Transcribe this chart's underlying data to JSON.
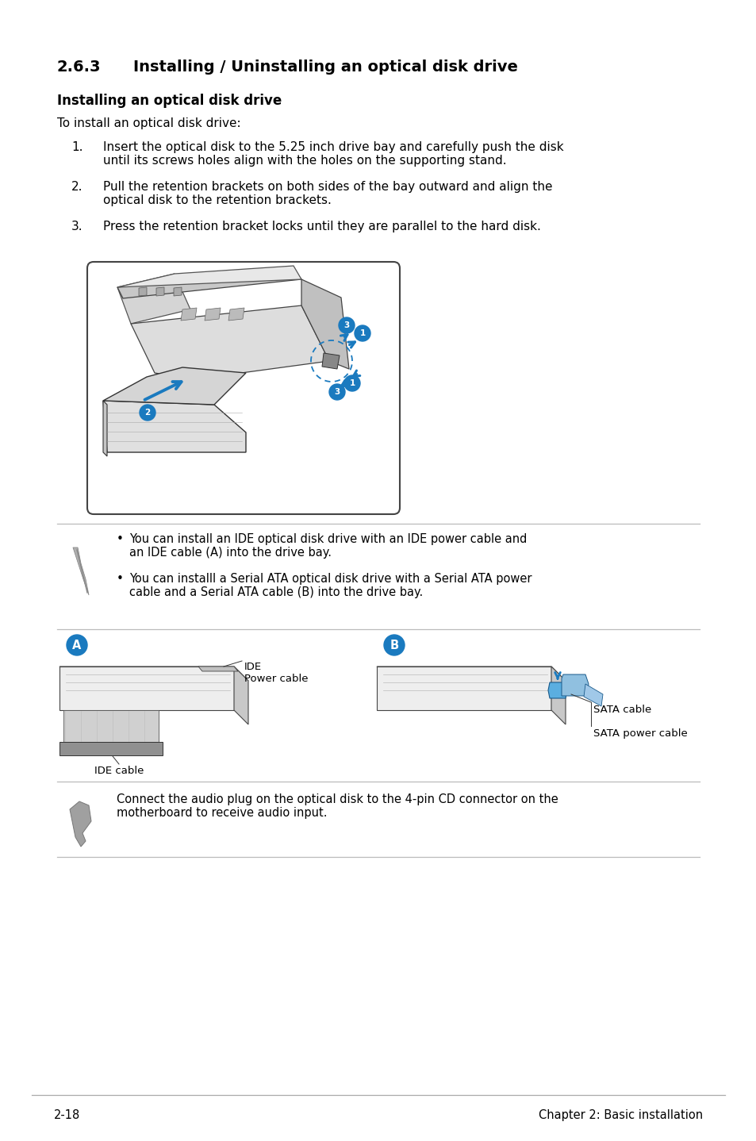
{
  "bg_color": "#ffffff",
  "text_color": "#000000",
  "accent_color": "#1a7abf",
  "gray_line": "#bbbbbb",
  "title_num": "2.6.3",
  "title_text": "Installing / Uninstalling an optical disk drive",
  "subtitle": "Installing an optical disk drive",
  "intro": "To install an optical disk drive:",
  "steps": [
    [
      "1.",
      "Insert the optical disk to the 5.25 inch drive bay and carefully push the disk\nuntil its screws holes align with the holes on the supporting stand."
    ],
    [
      "2.",
      "Pull the retention brackets on both sides of the bay outward and align the\noptical disk to the retention brackets."
    ],
    [
      "3.",
      "Press the retention bracket locks until they are parallel to the hard disk."
    ]
  ],
  "note1_lines": [
    "You can install an IDE optical disk drive with an IDE power cable and\nan IDE cable (A) into the drive bay.",
    "You can installl a Serial ATA optical disk drive with a Serial ATA power\ncable and a Serial ATA cable (B) into the drive bay."
  ],
  "note2_text": "Connect the audio plug on the optical disk to the 4-pin CD connector on the\nmotherboard to receive audio input.",
  "footer_left": "2-18",
  "footer_right": "Chapter 2: Basic installation"
}
